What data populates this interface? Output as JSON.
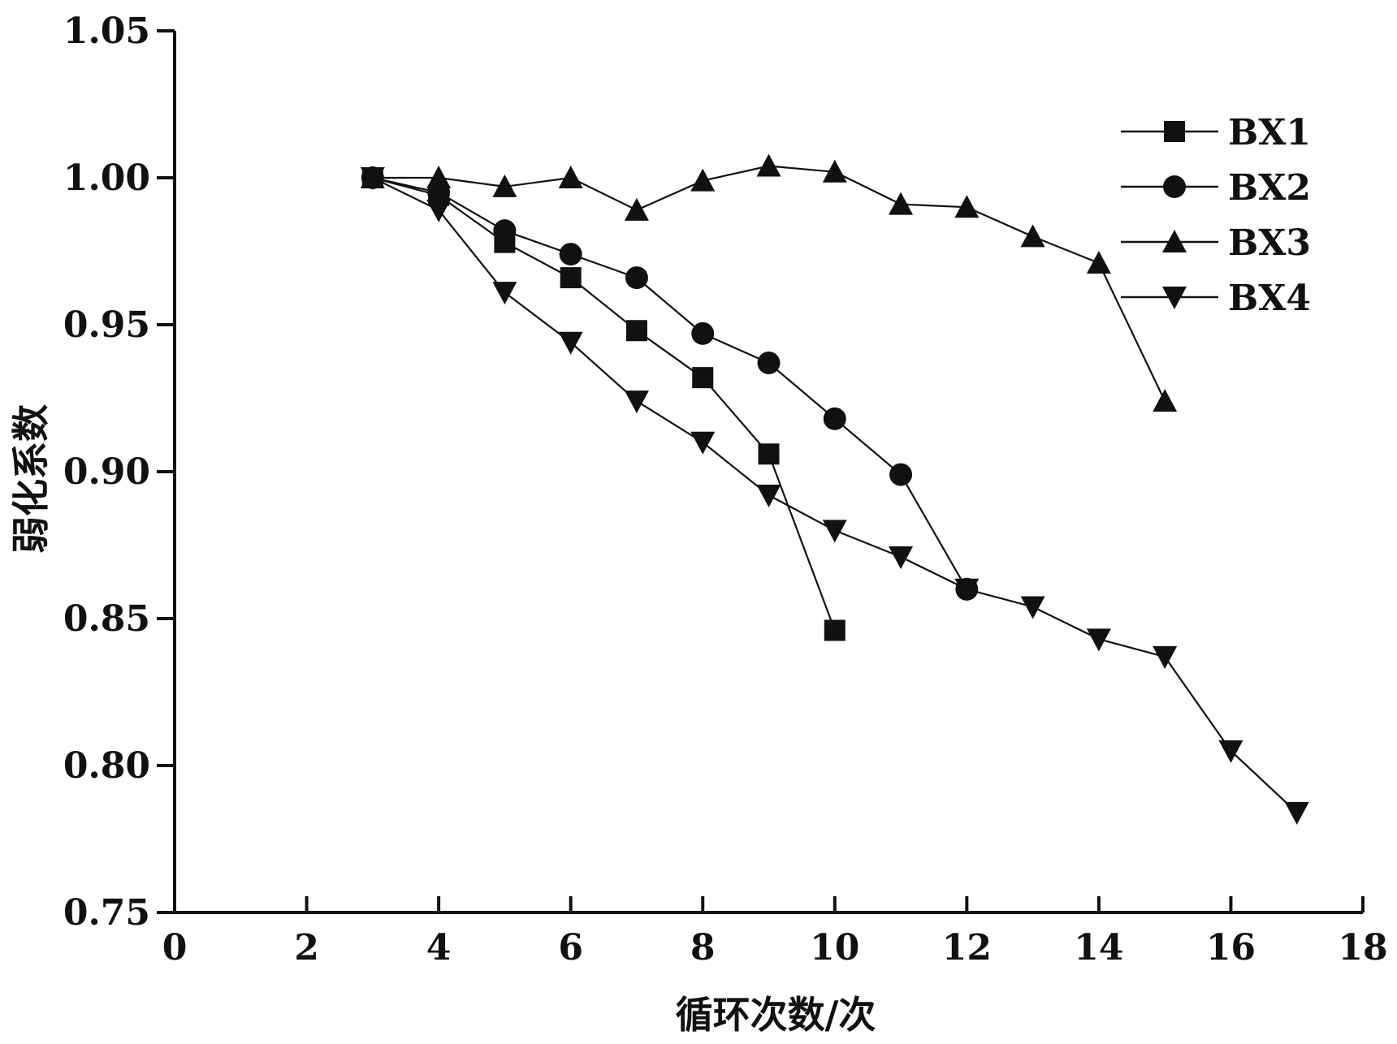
{
  "chart_data": {
    "type": "line",
    "title": "",
    "xlabel": "循环次数/次",
    "ylabel": "弱化系数",
    "xlim": [
      0,
      18
    ],
    "ylim": [
      0.75,
      1.05
    ],
    "xticks": [
      0,
      2,
      4,
      6,
      8,
      10,
      12,
      14,
      16,
      18
    ],
    "yticks": [
      0.75,
      0.8,
      0.85,
      0.9,
      0.95,
      1.0,
      1.05
    ],
    "xtick_labels": [
      "0",
      "2",
      "4",
      "6",
      "8",
      "10",
      "12",
      "14",
      "16",
      "18"
    ],
    "ytick_labels": [
      "0.75",
      "0.80",
      "0.85",
      "0.90",
      "0.95",
      "1.00",
      "1.05"
    ],
    "grid": false,
    "legend_position": "top-right",
    "series": [
      {
        "name": "BX1",
        "marker": "square",
        "x": [
          3,
          4,
          5,
          6,
          7,
          8,
          9,
          10
        ],
        "y": [
          1.0,
          0.994,
          0.978,
          0.966,
          0.948,
          0.932,
          0.906,
          0.846
        ]
      },
      {
        "name": "BX2",
        "marker": "circle",
        "x": [
          3,
          4,
          5,
          6,
          7,
          8,
          9,
          10,
          11,
          12
        ],
        "y": [
          1.0,
          0.995,
          0.982,
          0.974,
          0.966,
          0.947,
          0.937,
          0.918,
          0.899,
          0.86
        ]
      },
      {
        "name": "BX3",
        "marker": "triangle-up",
        "x": [
          3,
          4,
          5,
          6,
          7,
          8,
          9,
          10,
          11,
          12,
          13,
          14,
          15
        ],
        "y": [
          1.0,
          1.0,
          0.997,
          1.0,
          0.989,
          0.999,
          1.004,
          1.002,
          0.991,
          0.99,
          0.98,
          0.971,
          0.924
        ]
      },
      {
        "name": "BX4",
        "marker": "triangle-down",
        "x": [
          3,
          4,
          5,
          6,
          7,
          8,
          9,
          10,
          11,
          12,
          13,
          14,
          15,
          16,
          17
        ],
        "y": [
          1.0,
          0.989,
          0.961,
          0.944,
          0.924,
          0.91,
          0.892,
          0.88,
          0.871,
          0.86,
          0.854,
          0.843,
          0.837,
          0.805,
          0.784
        ]
      }
    ]
  }
}
